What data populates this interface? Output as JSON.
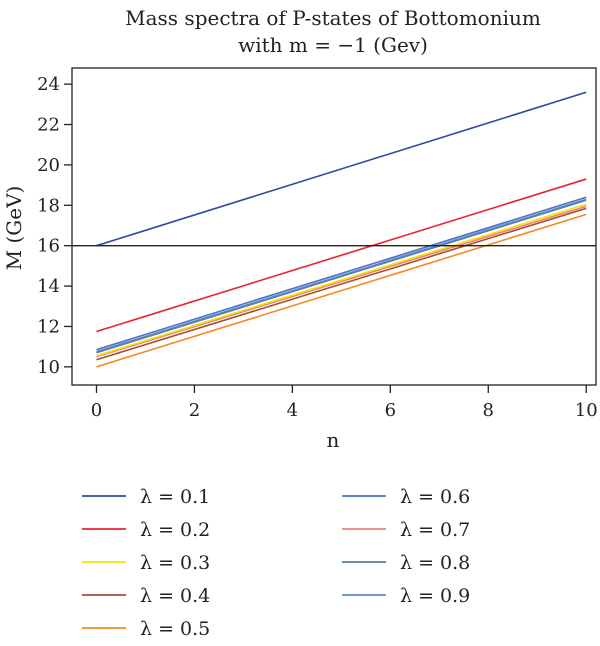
{
  "chart_data": {
    "type": "line",
    "title_lines": [
      "Mass spectra of P-states of Bottomonium",
      "with m = −1 (Gev)"
    ],
    "xlabel": "n",
    "ylabel": "M (GeV)",
    "xlim": [
      -0.5,
      10.2
    ],
    "ylim": [
      9.1,
      24.8
    ],
    "xticks": [
      0,
      2,
      4,
      6,
      8,
      10
    ],
    "yticks": [
      10,
      12,
      14,
      16,
      18,
      20,
      22,
      24
    ],
    "reference_line": {
      "y": 16,
      "color": "#222222"
    },
    "grid": false,
    "legend_position": "below",
    "series": [
      {
        "name": "λ = 0.1",
        "color": "#2b4e9b",
        "x": [
          0,
          10
        ],
        "y": [
          16.0,
          23.6
        ]
      },
      {
        "name": "λ = 0.2",
        "color": "#e8232b",
        "x": [
          0,
          10
        ],
        "y": [
          11.75,
          19.3
        ]
      },
      {
        "name": "λ = 0.3",
        "color": "#f2e500",
        "x": [
          0,
          10
        ],
        "y": [
          10.55,
          18.05
        ]
      },
      {
        "name": "λ = 0.4",
        "color": "#a0522d",
        "x": [
          0,
          10
        ],
        "y": [
          10.35,
          17.85
        ]
      },
      {
        "name": "λ = 0.5",
        "color": "#f7881f",
        "x": [
          0,
          10
        ],
        "y": [
          10.0,
          17.55
        ]
      },
      {
        "name": "λ = 0.6",
        "color": "#4a72c8",
        "x": [
          0,
          10
        ],
        "y": [
          10.85,
          18.4
        ]
      },
      {
        "name": "λ = 0.7",
        "color": "#f08080",
        "x": [
          0,
          10
        ],
        "y": [
          10.5,
          17.95
        ]
      },
      {
        "name": "λ = 0.8",
        "color": "#5a7fa8",
        "x": [
          0,
          10
        ],
        "y": [
          10.7,
          18.25
        ]
      },
      {
        "name": "λ = 0.9",
        "color": "#5b8bd6",
        "x": [
          0,
          10
        ],
        "y": [
          10.75,
          18.3
        ]
      }
    ]
  }
}
